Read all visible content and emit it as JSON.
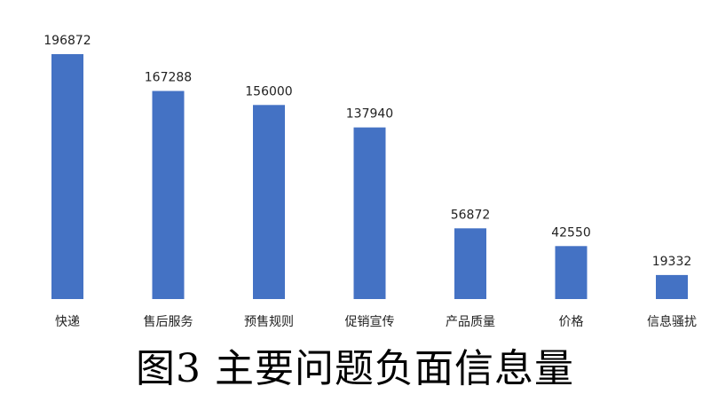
{
  "chart_data": {
    "type": "bar",
    "title": "图3 主要问题负面信息量",
    "categories": [
      "快递",
      "售后服务",
      "预售规则",
      "促销宣传",
      "产品质量",
      "价格",
      "信息骚扰"
    ],
    "values": [
      196872,
      167288,
      156000,
      137940,
      56872,
      42550,
      19332
    ],
    "value_labels": [
      "196872",
      "167288",
      "156000",
      "137940",
      "56872",
      "42550",
      "19332"
    ],
    "xlabel": "",
    "ylabel": "",
    "ylim": [
      0,
      196872
    ],
    "grid": false,
    "legend": "none",
    "bar_color": "#4472C4"
  }
}
